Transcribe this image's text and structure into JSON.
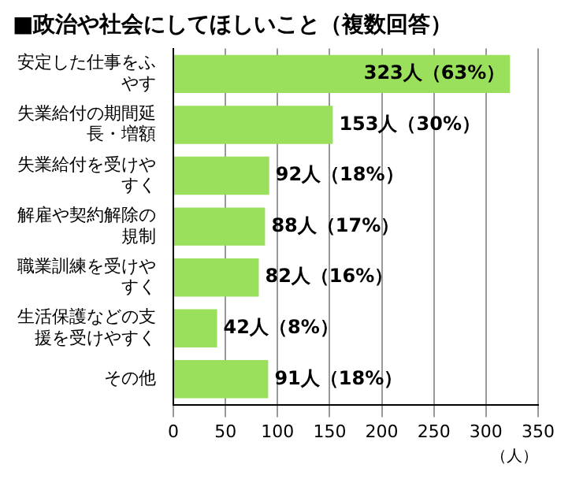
{
  "chart_data": {
    "type": "bar",
    "orientation": "horizontal",
    "title": "■政治や社会にしてほしいこと（複数回答）",
    "categories": [
      "安定した仕事をふやす",
      "失業給付の期間延長・増額",
      "失業給付を受けやすく",
      "解雇や契約解除の規制",
      "職業訓練を受けやすく",
      "生活保護などの支援を受けやすく",
      "その他"
    ],
    "values": [
      323,
      153,
      92,
      88,
      82,
      42,
      91
    ],
    "value_labels": [
      "323人（63%）",
      "153人（30%）",
      "92人（18%）",
      "88人（17%）",
      "82人（16%）",
      "42人（8%）",
      "91人（18%）"
    ],
    "color": "#9be05c",
    "xlim": [
      0,
      350
    ],
    "xticks": [
      0,
      50,
      100,
      150,
      200,
      250,
      300,
      350
    ],
    "xlabel": "（人）",
    "grid": "x"
  }
}
